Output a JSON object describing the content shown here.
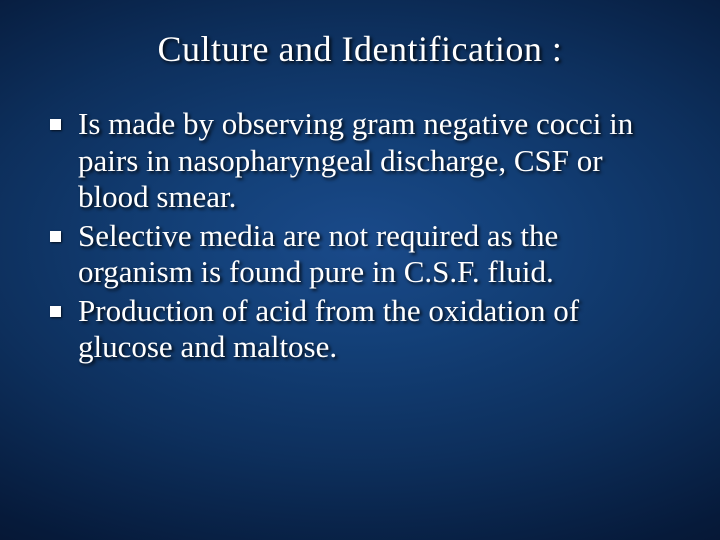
{
  "slide": {
    "title": "Culture and Identification :",
    "title_fontsize": 36,
    "title_color": "#ffffff",
    "bullets": [
      {
        "text": "Is made by observing gram negative cocci in pairs in nasopharyngeal discharge, CSF or blood smear."
      },
      {
        "text": " Selective media are not required as the organism is found pure in C.S.F. fluid."
      },
      {
        "text": "Production of acid from the oxidation of glucose and maltose."
      }
    ],
    "bullet_fontsize": 31,
    "bullet_color": "#ffffff",
    "bullet_marker_color": "#ffffff",
    "bullet_marker_size": 11,
    "background": {
      "type": "radial-gradient",
      "center_color": "#1a4a8a",
      "edge_color": "#020c1e"
    },
    "text_shadow": "2px 2px 3px rgba(0,0,0,0.85)",
    "font_family": "Garamond"
  }
}
